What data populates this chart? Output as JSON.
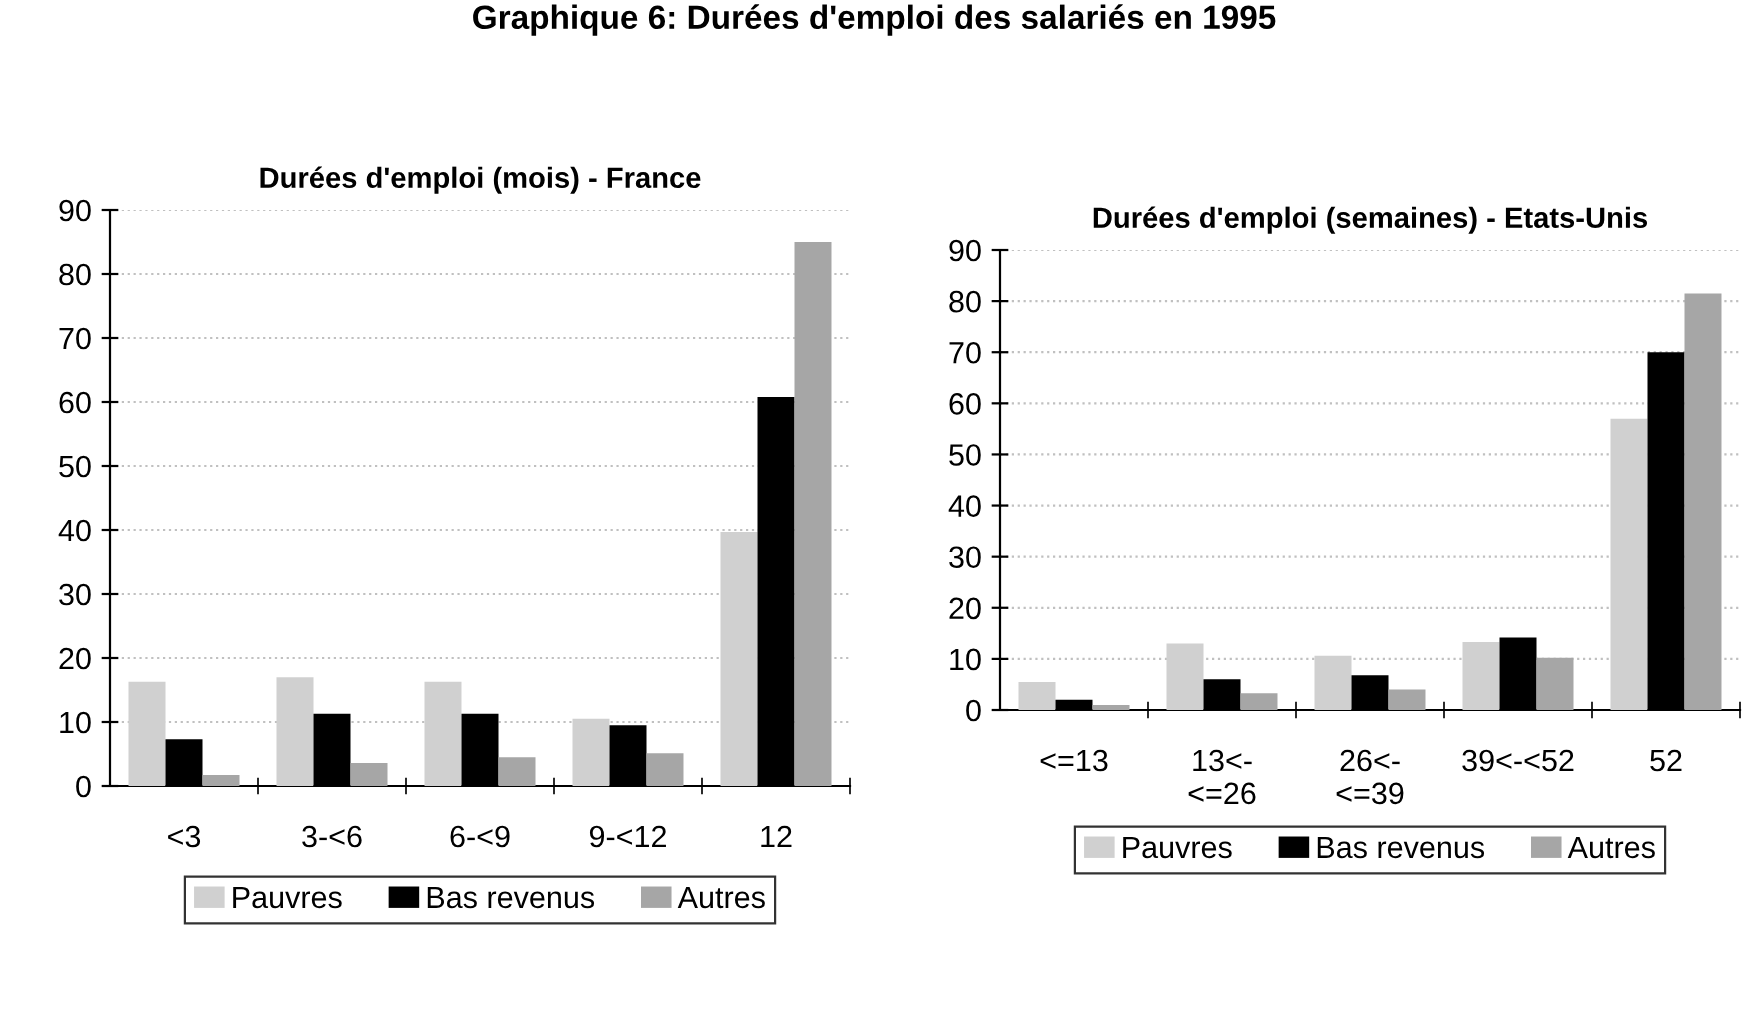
{
  "chart_data": [
    {
      "type": "bar",
      "title": "Durées d'emploi (mois) - France",
      "categories": [
        "<3",
        "3-<6",
        "6-<9",
        "9-<12",
        "12"
      ],
      "series": [
        {
          "name": "Pauvres",
          "color": "#d0d0d0",
          "values": [
            16.3,
            17,
            16.3,
            10.5,
            39.7
          ]
        },
        {
          "name": "Bas revenus",
          "color": "#000000",
          "values": [
            7.3,
            11.3,
            11.3,
            9.5,
            60.8
          ]
        },
        {
          "name": "Autres",
          "color": "#a6a6a6",
          "values": [
            1.7,
            3.6,
            4.5,
            5.1,
            85
          ]
        }
      ],
      "ylim": [
        0,
        90
      ],
      "yticks": [
        0,
        10,
        20,
        30,
        40,
        50,
        60,
        70,
        80,
        90
      ],
      "grid": "y",
      "legend": "bottom",
      "annotations": [
        "Graphique 6: Durées d'emploi des salariés en 1995"
      ]
    },
    {
      "type": "bar",
      "title": "Durées d'emploi (semaines) - Etats-Unis",
      "categories": [
        "<=13",
        "13<-\n<=26",
        "26<-\n<=39",
        "39<-<52",
        "52"
      ],
      "series": [
        {
          "name": "Pauvres",
          "color": "#d0d0d0",
          "values": [
            5.5,
            13,
            10.6,
            13.3,
            57
          ]
        },
        {
          "name": "Bas revenus",
          "color": "#000000",
          "values": [
            2,
            6,
            6.8,
            14.2,
            70
          ]
        },
        {
          "name": "Autres",
          "color": "#a6a6a6",
          "values": [
            1,
            3.3,
            4,
            10.2,
            81.5
          ]
        }
      ],
      "ylim": [
        0,
        90
      ],
      "yticks": [
        0,
        10,
        20,
        30,
        40,
        50,
        60,
        70,
        80,
        90
      ],
      "grid": "y",
      "legend": "bottom"
    }
  ]
}
